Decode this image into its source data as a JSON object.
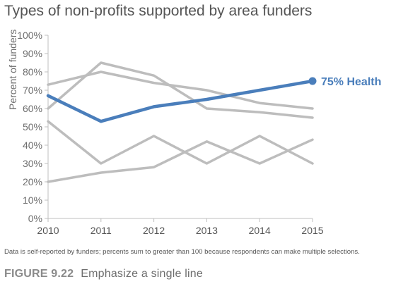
{
  "chart_data": {
    "type": "line",
    "title": "Types of non-profits supported by area funders",
    "ylabel": "Percent of funders",
    "x": [
      "2010",
      "2011",
      "2012",
      "2013",
      "2014",
      "2015"
    ],
    "y_ticks": [
      "0%",
      "10%",
      "20%",
      "30%",
      "40%",
      "50%",
      "60%",
      "70%",
      "80%",
      "90%",
      "100%"
    ],
    "ylim": [
      0,
      100
    ],
    "grid": false,
    "series": [
      {
        "values": [
          73,
          80,
          74,
          70,
          63,
          60
        ],
        "color": "#bdbdbd",
        "highlight": false
      },
      {
        "values": [
          60,
          85,
          78,
          60,
          58,
          55
        ],
        "color": "#bdbdbd",
        "highlight": false
      },
      {
        "values": [
          53,
          30,
          45,
          30,
          45,
          30
        ],
        "color": "#bdbdbd",
        "highlight": false
      },
      {
        "values": [
          20,
          25,
          28,
          42,
          30,
          43
        ],
        "color": "#bdbdbd",
        "highlight": false
      },
      {
        "name": "Health",
        "values": [
          67,
          53,
          61,
          65,
          70,
          75
        ],
        "color": "#4a7ebb",
        "highlight": true
      }
    ],
    "annotation": "75% Health"
  },
  "note": "Data is self-reported by funders; percents sum to greater than 100 because respondents can make multiple selections.",
  "caption": {
    "figure": "FIGURE 9.22",
    "text": "Emphasize a single line"
  }
}
